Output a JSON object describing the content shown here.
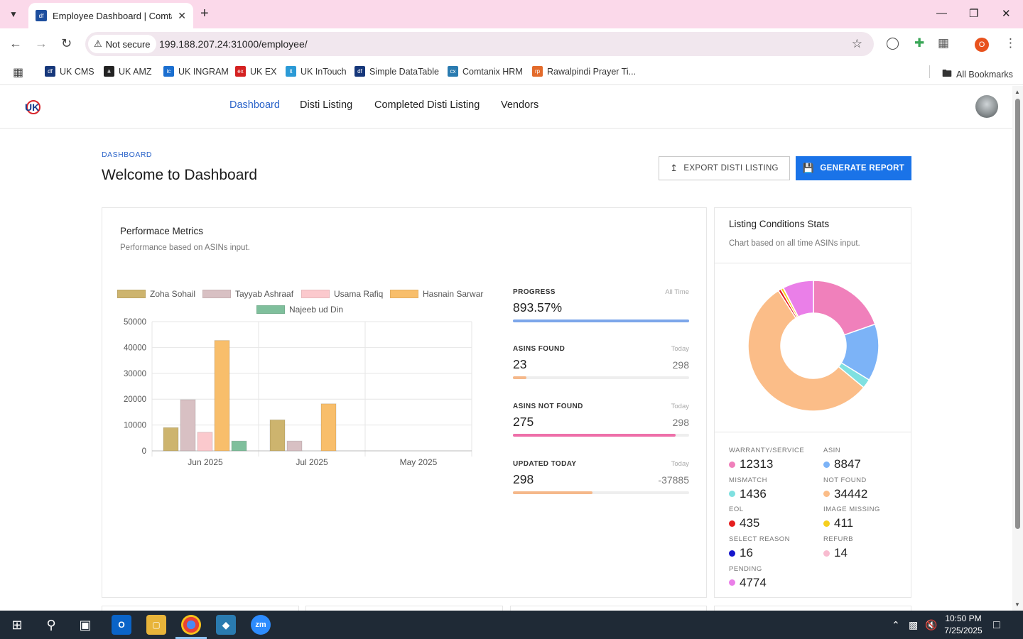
{
  "browser": {
    "tab_title": "Employee Dashboard | Comtanix",
    "tab_favicon": "df",
    "security_label": "Not secure",
    "url": "199.188.207.24:31000/employee/",
    "profile_initial": "O",
    "bookmarks": [
      {
        "label": "UK CMS",
        "color": "#16377a",
        "icon": "df"
      },
      {
        "label": "UK AMZ",
        "color": "#222222",
        "icon": "a"
      },
      {
        "label": "UK INGRAM",
        "color": "#1b6fd0",
        "icon": "ic"
      },
      {
        "label": "UK EX",
        "color": "#d42121",
        "icon": "ex"
      },
      {
        "label": "UK InTouch",
        "color": "#2b9ad6",
        "icon": "it"
      },
      {
        "label": "Simple DataTable",
        "color": "#16377a",
        "icon": "df"
      },
      {
        "label": "Comtanix HRM",
        "color": "#2a7bb0",
        "icon": "cx"
      },
      {
        "label": "Rawalpindi Prayer Ti...",
        "color": "#e36b2b",
        "icon": "rp"
      }
    ],
    "all_bookmarks": "All Bookmarks"
  },
  "nav": {
    "links": [
      "Dashboard",
      "Disti Listing",
      "Completed Disti Listing",
      "Vendors"
    ]
  },
  "header": {
    "breadcrumb": "DASHBOARD",
    "title": "Welcome to Dashboard",
    "export_label": "EXPORT DISTI LISTING",
    "generate_label": "GENERATE REPORT"
  },
  "performance": {
    "title": "Performace Metrics",
    "subtitle": "Performance based on ASINs input.",
    "metrics": [
      {
        "label": "PROGRESS",
        "period": "All Time",
        "value": "893.57%",
        "total": "",
        "fill": 1.0,
        "color": "#7ca6ea"
      },
      {
        "label": "ASINS FOUND",
        "period": "Today",
        "value": "23",
        "total": "298",
        "fill": 0.077,
        "color": "#f5b88a"
      },
      {
        "label": "ASINS NOT FOUND",
        "period": "Today",
        "value": "275",
        "total": "298",
        "fill": 0.923,
        "color": "#ee6fa9"
      },
      {
        "label": "UPDATED TODAY",
        "period": "Today",
        "value": "298",
        "total": "-37885",
        "fill": 0.45,
        "color": "#f5b88a"
      }
    ]
  },
  "chart_data": {
    "type": "bar",
    "categories": [
      "Jun 2025",
      "Jul 2025",
      "May 2025"
    ],
    "series": [
      {
        "name": "Zoha Sohail",
        "color": "#cdb46e",
        "values": [
          9000,
          12000,
          0
        ]
      },
      {
        "name": "Tayyab Ashraaf",
        "color": "#d8c0c3",
        "values": [
          19800,
          3800,
          0
        ]
      },
      {
        "name": "Usama Rafiq",
        "color": "#fbc9cd",
        "values": [
          7200,
          0,
          0
        ]
      },
      {
        "name": "Hasnain Sarwar",
        "color": "#f8be6b",
        "values": [
          42700,
          18200,
          0
        ]
      },
      {
        "name": "Najeeb ud Din",
        "color": "#7fbf9c",
        "values": [
          3800,
          0,
          0
        ]
      }
    ],
    "ylim": [
      0,
      50000
    ],
    "yticks": [
      0,
      10000,
      20000,
      30000,
      40000,
      50000
    ],
    "grid": true,
    "legend": "top"
  },
  "listing_stats": {
    "title": "Listing Conditions Stats",
    "subtitle": "Chart based on all time ASINs input.",
    "items": [
      {
        "label": "WARRANTY/SERVICE",
        "value": "12313",
        "color": "#f080bb"
      },
      {
        "label": "ASIN",
        "value": "8847",
        "color": "#7cb3f7"
      },
      {
        "label": "MISMATCH",
        "value": "1436",
        "color": "#7fe0e0"
      },
      {
        "label": "NOT FOUND",
        "value": "34442",
        "color": "#fbbd88"
      },
      {
        "label": "EOL",
        "value": "435",
        "color": "#e51f1f"
      },
      {
        "label": "IMAGE MISSING",
        "value": "411",
        "color": "#f6cf1e"
      },
      {
        "label": "SELECT REASON",
        "value": "16",
        "color": "#1515cc"
      },
      {
        "label": "REFURB",
        "value": "14",
        "color": "#f8bcd0"
      },
      {
        "label": "PENDING",
        "value": "4774",
        "color": "#ea7fe8"
      }
    ]
  },
  "taskbar": {
    "time": "10:50 PM",
    "date": "7/25/2025"
  }
}
